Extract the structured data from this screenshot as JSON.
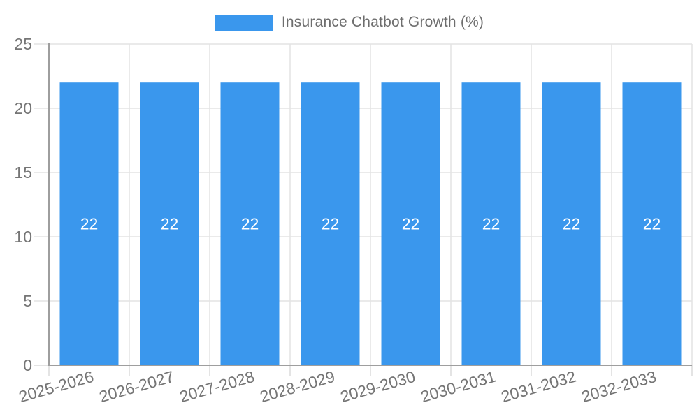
{
  "legend": {
    "label": "Insurance Chatbot Growth (%)"
  },
  "colors": {
    "bar": "#3A97ED",
    "grid": "#E3E3E3",
    "tick": "#DADADA",
    "axis": "#9E9E9E",
    "axis_text": "#757575",
    "value_text": "#FFFFFF"
  },
  "chart_data": {
    "type": "bar",
    "title": "Insurance Chatbot Growth (%)",
    "categories": [
      "2025-2026",
      "2026-2027",
      "2027-2028",
      "2028-2029",
      "2029-2030",
      "2030-2031",
      "2031-2032",
      "2032-2033"
    ],
    "values": [
      22,
      22,
      22,
      22,
      22,
      22,
      22,
      22
    ],
    "value_labels": [
      "22",
      "22",
      "22",
      "22",
      "22",
      "22",
      "22",
      "22"
    ],
    "xlabel": "",
    "ylabel": "",
    "ylim": [
      0,
      25
    ],
    "yticks": [
      0,
      5,
      10,
      15,
      20,
      25
    ],
    "grid": true,
    "legend_position": "top",
    "x_label_rotation_deg": -16
  }
}
